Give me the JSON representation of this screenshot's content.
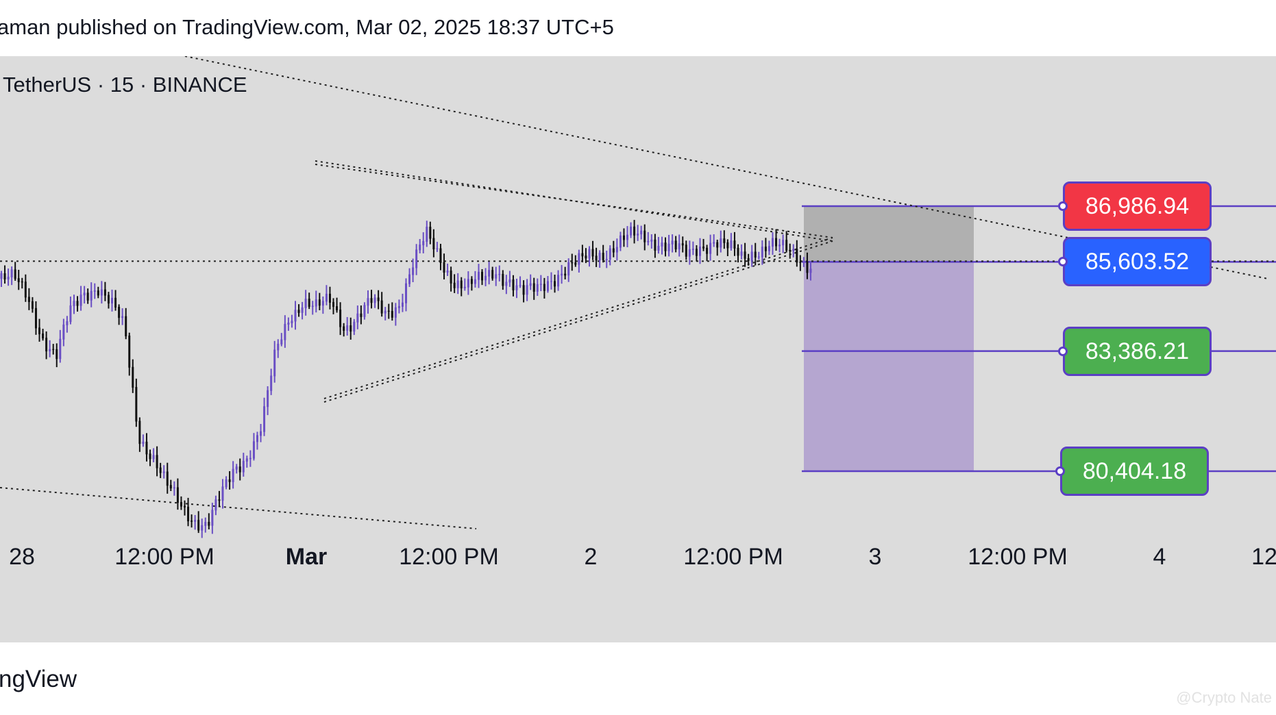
{
  "header": {
    "published_text": "aman published on TradingView.com, Mar 02, 2025 18:37 UTC+5"
  },
  "symbol_label": "TetherUS · 15 · BINANCE",
  "footer": {
    "brand": "ngView",
    "watermark": "@Crypto Nate"
  },
  "colors": {
    "stop_loss": "#f23645",
    "entry": "#2962ff",
    "target": "#4caf50",
    "line": "#5b3fc4",
    "background": "#dcdcdc"
  },
  "chart_data": {
    "type": "candlestick",
    "title": "",
    "x_ticks": [
      {
        "label": "28",
        "bold": false
      },
      {
        "label": "12:00 PM",
        "bold": false
      },
      {
        "label": "Mar",
        "bold": true
      },
      {
        "label": "12:00 PM",
        "bold": false
      },
      {
        "label": "2",
        "bold": false
      },
      {
        "label": "12:00 PM",
        "bold": false
      },
      {
        "label": "3",
        "bold": false
      },
      {
        "label": "12:00 PM",
        "bold": false
      },
      {
        "label": "4",
        "bold": false
      },
      {
        "label": "12",
        "bold": false
      }
    ],
    "price_levels": [
      {
        "name": "stop",
        "value": 86986.94,
        "label": "86,986.94",
        "color": "#f23645"
      },
      {
        "name": "entry",
        "value": 85603.52,
        "label": "85,603.52",
        "color": "#2962ff"
      },
      {
        "name": "target1",
        "value": 83386.21,
        "label": "83,386.21",
        "color": "#4caf50"
      },
      {
        "name": "target2",
        "value": 80404.18,
        "label": "80,404.18",
        "color": "#4caf50"
      }
    ],
    "ylim": [
      78000,
      90000
    ],
    "price_path": [
      85200,
      85100,
      84700,
      83800,
      83200,
      84300,
      84900,
      85050,
      84500,
      83900,
      81400,
      80800,
      80000,
      79600,
      79300,
      79050,
      79700,
      80500,
      80900,
      81500,
      83300,
      84300,
      84700,
      84400,
      84600,
      84050,
      84300,
      84550,
      84300,
      84650,
      85550,
      86200,
      85700,
      85200,
      84950,
      85100,
      85450,
      85200,
      84750,
      84900,
      85250,
      85400,
      85500,
      85800,
      85900,
      86050,
      86200,
      86250,
      86150,
      85950,
      85700,
      86050,
      86200,
      85900,
      85650,
      85950,
      86100,
      85850,
      85700,
      85600
    ]
  }
}
